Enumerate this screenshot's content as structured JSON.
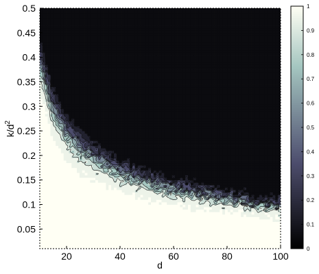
{
  "chart_data": {
    "type": "heatmap",
    "title": "",
    "xlabel": "d",
    "ylabel": "k/d",
    "ylabel_superscript": "2",
    "xlim": [
      10,
      100
    ],
    "ylim": [
      0.01,
      0.5
    ],
    "x_ticks": [
      20,
      40,
      60,
      80,
      100
    ],
    "x_tick_labels": [
      "20",
      "40",
      "60",
      "80",
      "100"
    ],
    "y_ticks": [
      0.05,
      0.1,
      0.15,
      0.2,
      0.25,
      0.3,
      0.35,
      0.4,
      0.45,
      0.5
    ],
    "y_tick_labels": [
      "0.05",
      "0.1",
      "0.15",
      "0.2",
      "0.25",
      "0.3",
      "0.35",
      "0.4",
      "0.45",
      "0.5"
    ],
    "colorbar": {
      "range": [
        0,
        1
      ],
      "ticks": [
        0,
        0.1,
        0.2,
        0.3,
        0.4,
        0.5,
        0.6,
        0.7,
        0.8,
        0.9,
        1
      ],
      "tick_labels": [
        "0",
        "0.1",
        "0.2",
        "0.3",
        "0.4",
        "0.5",
        "0.6",
        "0.7",
        "0.8",
        "0.9",
        "1"
      ],
      "colormap": "bone"
    },
    "contour_levels": [
      0.1,
      0.2,
      0.3,
      0.4,
      0.5,
      0.6,
      0.7,
      0.8,
      0.9
    ],
    "transition_curve": {
      "description_hidden": true,
      "d": [
        10,
        15,
        20,
        25,
        30,
        40,
        50,
        60,
        70,
        80,
        90,
        100
      ],
      "k_over_d2_at_half": [
        0.4,
        0.3,
        0.25,
        0.22,
        0.2,
        0.17,
        0.15,
        0.135,
        0.125,
        0.115,
        0.105,
        0.1
      ]
    },
    "transition_width": [
      0.13,
      0.12,
      0.11,
      0.1,
      0.09,
      0.08,
      0.07,
      0.065,
      0.06,
      0.055,
      0.05,
      0.05
    ]
  }
}
